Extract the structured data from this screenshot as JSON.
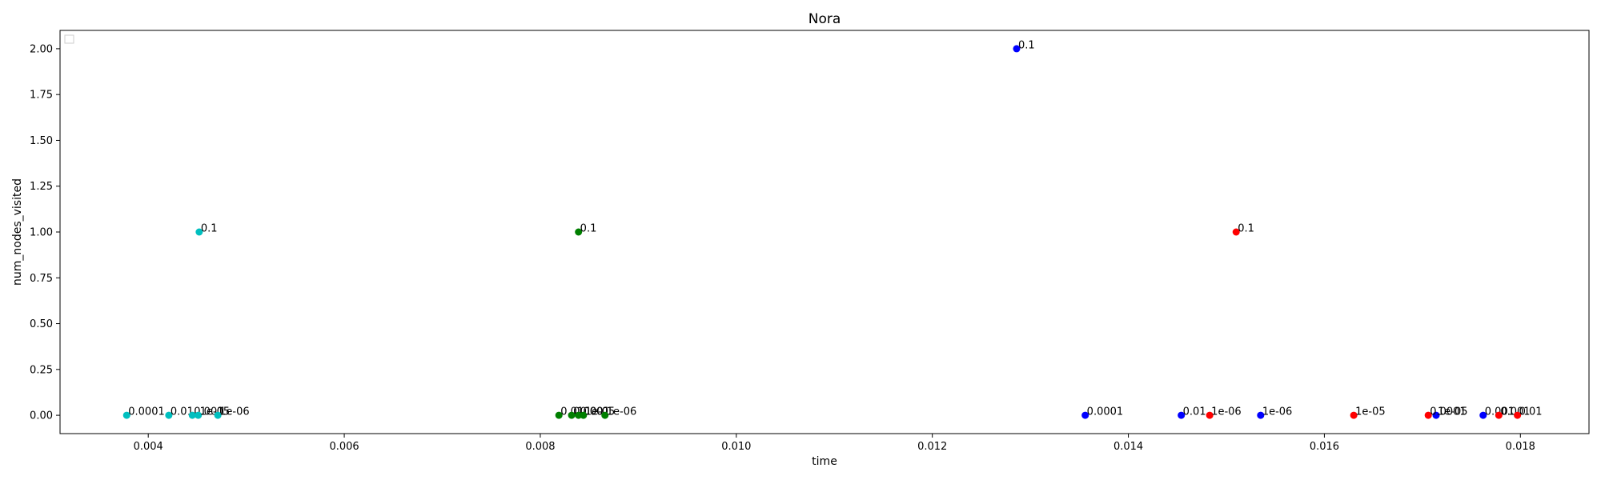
{
  "chart_data": {
    "type": "scatter",
    "title": "Nora",
    "xlabel": "time",
    "ylabel": "num_nodes_visited",
    "xlim": [
      0.0031,
      0.0187
    ],
    "ylim": [
      -0.1,
      2.1
    ],
    "xticks": [
      0.004,
      0.006,
      0.008,
      0.01,
      0.012,
      0.014,
      0.016,
      0.018
    ],
    "xtick_labels": [
      "0.004",
      "0.006",
      "0.008",
      "0.010",
      "0.012",
      "0.014",
      "0.016",
      "0.018"
    ],
    "yticks": [
      0.0,
      0.25,
      0.5,
      0.75,
      1.0,
      1.25,
      1.5,
      1.75,
      2.0
    ],
    "ytick_labels": [
      "0.00",
      "0.25",
      "0.50",
      "0.75",
      "1.00",
      "1.25",
      "1.50",
      "1.75",
      "2.00"
    ],
    "grid": false,
    "legend": "top-left",
    "series": [
      {
        "color": "#00bfbf",
        "points": [
          {
            "x": 0.00378,
            "y": 0,
            "label": "0.0001"
          },
          {
            "x": 0.00421,
            "y": 0,
            "label": "0.01"
          },
          {
            "x": 0.00445,
            "y": 0,
            "label": "0.001"
          },
          {
            "x": 0.00452,
            "y": 1,
            "label": "0.1"
          },
          {
            "x": 0.00451,
            "y": 0,
            "label": "1e-05"
          },
          {
            "x": 0.00471,
            "y": 0,
            "label": "1e-06"
          }
        ]
      },
      {
        "color": "#007f00",
        "points": [
          {
            "x": 0.00819,
            "y": 0,
            "label": "0.01"
          },
          {
            "x": 0.00832,
            "y": 0,
            "label": "0.0001"
          },
          {
            "x": 0.00839,
            "y": 1,
            "label": "0.1"
          },
          {
            "x": 0.00839,
            "y": 0,
            "label": "0.001"
          },
          {
            "x": 0.00844,
            "y": 0,
            "label": "1e-05"
          },
          {
            "x": 0.00866,
            "y": 0,
            "label": "1e-06"
          }
        ]
      },
      {
        "color": "#0000ff",
        "points": [
          {
            "x": 0.01286,
            "y": 2,
            "label": "0.1"
          },
          {
            "x": 0.01356,
            "y": 0,
            "label": "0.0001"
          },
          {
            "x": 0.01454,
            "y": 0,
            "label": "0.01"
          },
          {
            "x": 0.01535,
            "y": 0,
            "label": "1e-06"
          },
          {
            "x": 0.01714,
            "y": 0,
            "label": "1e-05"
          },
          {
            "x": 0.01762,
            "y": 0,
            "label": "0.001"
          }
        ]
      },
      {
        "color": "#ff0000",
        "points": [
          {
            "x": 0.0151,
            "y": 1,
            "label": "0.1"
          },
          {
            "x": 0.01483,
            "y": 0,
            "label": "1e-06"
          },
          {
            "x": 0.0163,
            "y": 0,
            "label": "1e-05"
          },
          {
            "x": 0.01706,
            "y": 0,
            "label": "0.0001"
          },
          {
            "x": 0.01778,
            "y": 0,
            "label": "0.001"
          },
          {
            "x": 0.01797,
            "y": 0,
            "label": "0.01"
          }
        ]
      }
    ]
  }
}
